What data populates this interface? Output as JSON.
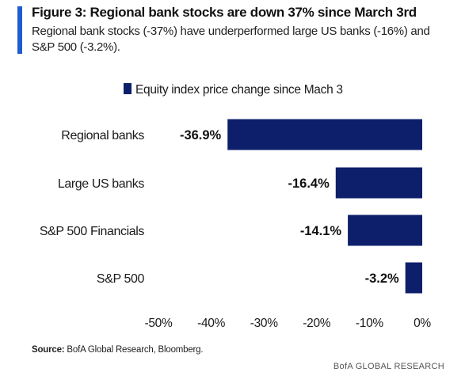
{
  "figure": {
    "title": "Figure 3: Regional bank stocks are down 37% since March 3rd",
    "subtitle": "Regional bank stocks (-37%) have underperformed large US banks (-16%) and S&P 500 (-3.2%).",
    "source_label": "Source:",
    "source_text": "BofA Global Research, Bloomberg.",
    "brand": "BofA GLOBAL RESEARCH",
    "accent_color": "#1f5ccf"
  },
  "chart_data": {
    "type": "bar",
    "orientation": "horizontal",
    "categories": [
      "Regional banks",
      "Large US banks",
      "S&P 500 Financials",
      "S&P 500"
    ],
    "series": [
      {
        "name": "Equity index price change since Mach 3",
        "values": [
          -36.9,
          -16.4,
          -14.1,
          -3.2
        ],
        "color": "#0d1f6b"
      }
    ],
    "data_labels": [
      "-36.9%",
      "-16.4%",
      "-14.1%",
      "-3.2%"
    ],
    "xlim": [
      -50,
      0
    ],
    "x_ticks": [
      -50,
      -40,
      -30,
      -20,
      -10,
      0
    ],
    "x_tick_labels": [
      "-50%",
      "-40%",
      "-30%",
      "-20%",
      "-10%",
      "0%"
    ],
    "legend_position": "top",
    "grid": false
  }
}
